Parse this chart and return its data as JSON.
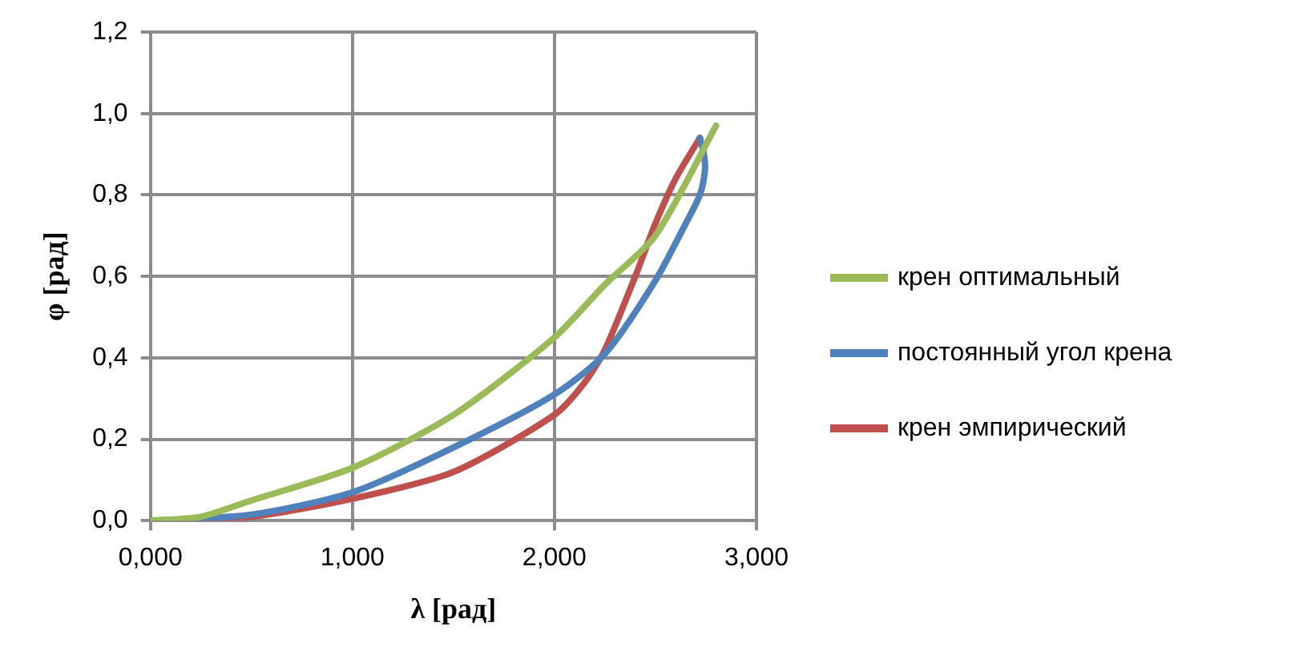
{
  "chart_data": {
    "type": "line",
    "xlabel": "λ [рад]",
    "ylabel": "φ [рад]",
    "xlim": [
      0,
      3
    ],
    "xticks": [
      {
        "value": 0,
        "label": "0,000"
      },
      {
        "value": 1,
        "label": "1,000"
      },
      {
        "value": 2,
        "label": "2,000"
      },
      {
        "value": 3,
        "label": "3,000"
      }
    ],
    "ylim": [
      0,
      1.2
    ],
    "yticks": [
      {
        "value": 0,
        "label": "0,0"
      },
      {
        "value": 0.2,
        "label": "0,2"
      },
      {
        "value": 0.4,
        "label": "0,4"
      },
      {
        "value": 0.6,
        "label": "0,6"
      },
      {
        "value": 0.8,
        "label": "0,8"
      },
      {
        "value": 1,
        "label": "1,0"
      },
      {
        "value": 1.2,
        "label": "1,2"
      }
    ],
    "grid": true,
    "legend": "right",
    "marker": "none",
    "line_style": "solid",
    "series": [
      {
        "name": "крен оптимальный",
        "color": "#9bbb59",
        "x": [
          0,
          0.25,
          0.5,
          1,
          1.5,
          2,
          2.25,
          2.5,
          2.8
        ],
        "values": [
          0,
          0.01,
          0.05,
          0.13,
          0.26,
          0.45,
          0.58,
          0.7,
          0.97
        ]
      },
      {
        "name": "постоянный угол крена",
        "color": "#4f81bd",
        "x": [
          0,
          0.5,
          1,
          1.5,
          2,
          2.25,
          2.5,
          2.65,
          2.72,
          2.745,
          2.74,
          2.72
        ],
        "values": [
          0,
          0.015,
          0.07,
          0.18,
          0.31,
          0.41,
          0.59,
          0.73,
          0.8,
          0.86,
          0.9,
          0.94
        ]
      },
      {
        "name": "крен эмпирический",
        "color": "#c0504d",
        "x": [
          0,
          0.5,
          1,
          1.5,
          2,
          2.15,
          2.25,
          2.4,
          2.5,
          2.6,
          2.72
        ],
        "values": [
          0,
          0.01,
          0.054,
          0.12,
          0.26,
          0.34,
          0.42,
          0.6,
          0.73,
          0.84,
          0.94
        ]
      }
    ]
  }
}
